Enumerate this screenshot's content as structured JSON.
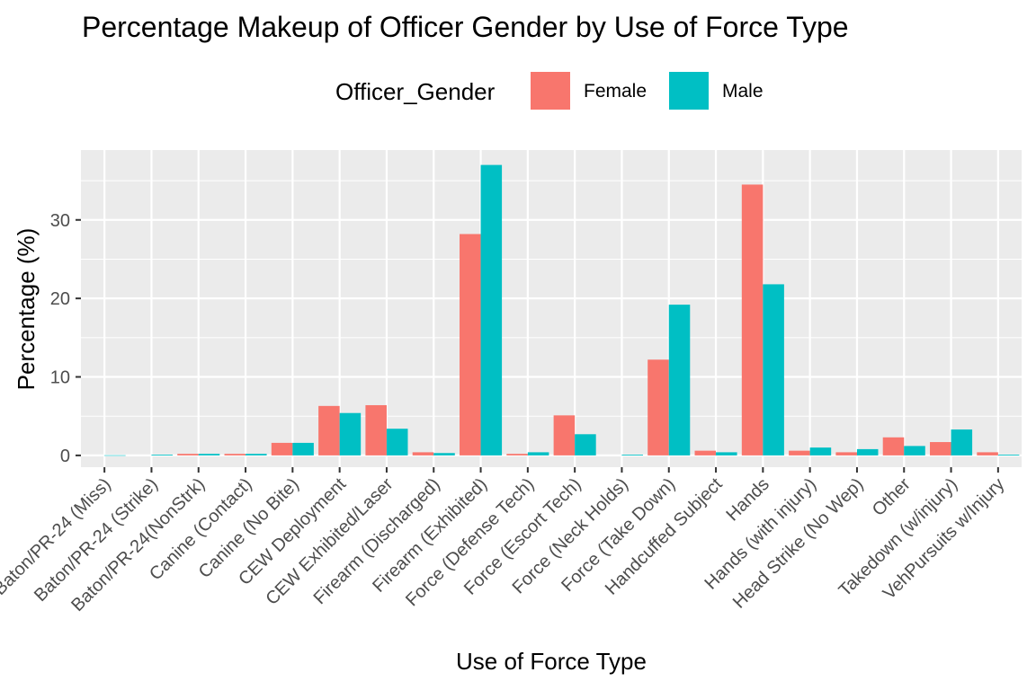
{
  "chart_data": {
    "type": "bar",
    "title": "Percentage Makeup of Officer Gender by Use of Force Type",
    "xlabel": "Use of Force Type",
    "ylabel": "Percentage (%)",
    "ylim": [
      -1.5,
      38.9
    ],
    "yticks": [
      0,
      10,
      20,
      30
    ],
    "grid": true,
    "legend": {
      "title": "Officer_Gender",
      "placement": "top"
    },
    "categories": [
      "Baton/PR-24 (Miss)",
      "Baton/PR-24 (Strike)",
      "Baton/PR-24(NonStrk)",
      "Canine (Contact)",
      "Canine (No Bite)",
      "CEW Deployment",
      "CEW Exhibited/Laser",
      "Firearm (Discharged)",
      "Firearm (Exhibited)",
      "Force (Defense Tech)",
      "Force (Escort Tech)",
      "Force (Neck Holds)",
      "Force (Take Down)",
      "Handcuffed Subject",
      "Hands",
      "Hands (with injury)",
      "Head Strike (No Wep)",
      "Other",
      "Takedown (w/injury)",
      "VehPursuits w/Injury"
    ],
    "series": [
      {
        "name": "Female",
        "color": "#F8766D",
        "values": [
          null,
          null,
          0.2,
          0.2,
          1.6,
          6.3,
          6.4,
          0.4,
          28.2,
          0.2,
          5.1,
          null,
          12.2,
          0.6,
          34.5,
          0.6,
          0.4,
          2.3,
          1.7,
          0.4
        ]
      },
      {
        "name": "Male",
        "color": "#00BFC4",
        "values": [
          0.02,
          0.1,
          0.2,
          0.2,
          1.6,
          5.4,
          3.4,
          0.3,
          37.0,
          0.4,
          2.7,
          0.1,
          19.2,
          0.4,
          21.8,
          1.0,
          0.8,
          1.2,
          3.3,
          0.1
        ]
      }
    ]
  }
}
